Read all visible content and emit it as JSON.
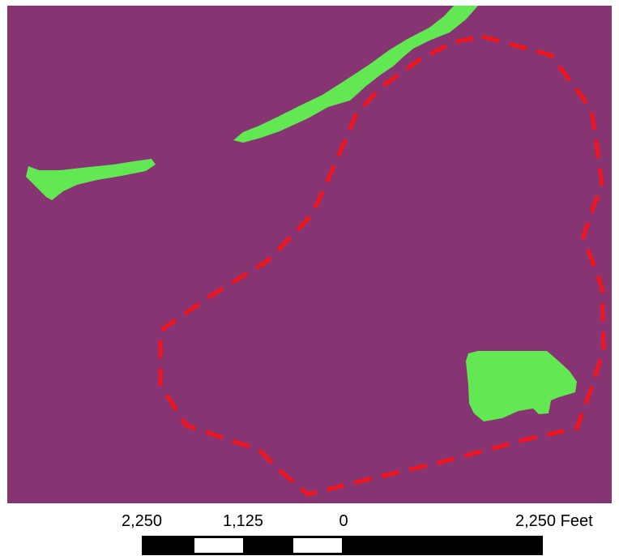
{
  "map": {
    "background_color": "#863572",
    "feature_color": "#62e853",
    "boundary_color": "#f0141e",
    "features": [
      {
        "name": "river-channel-north",
        "type": "green-area"
      },
      {
        "name": "river-channel-west",
        "type": "green-area"
      },
      {
        "name": "pond-southeast",
        "type": "green-area"
      },
      {
        "name": "study-area-boundary",
        "type": "dashed-outline"
      }
    ]
  },
  "scale_bar": {
    "labels": [
      "2,250",
      "1,125",
      "0",
      "2,250 Feet"
    ],
    "colors": {
      "dark": "#000000",
      "light": "#ffffff"
    }
  }
}
